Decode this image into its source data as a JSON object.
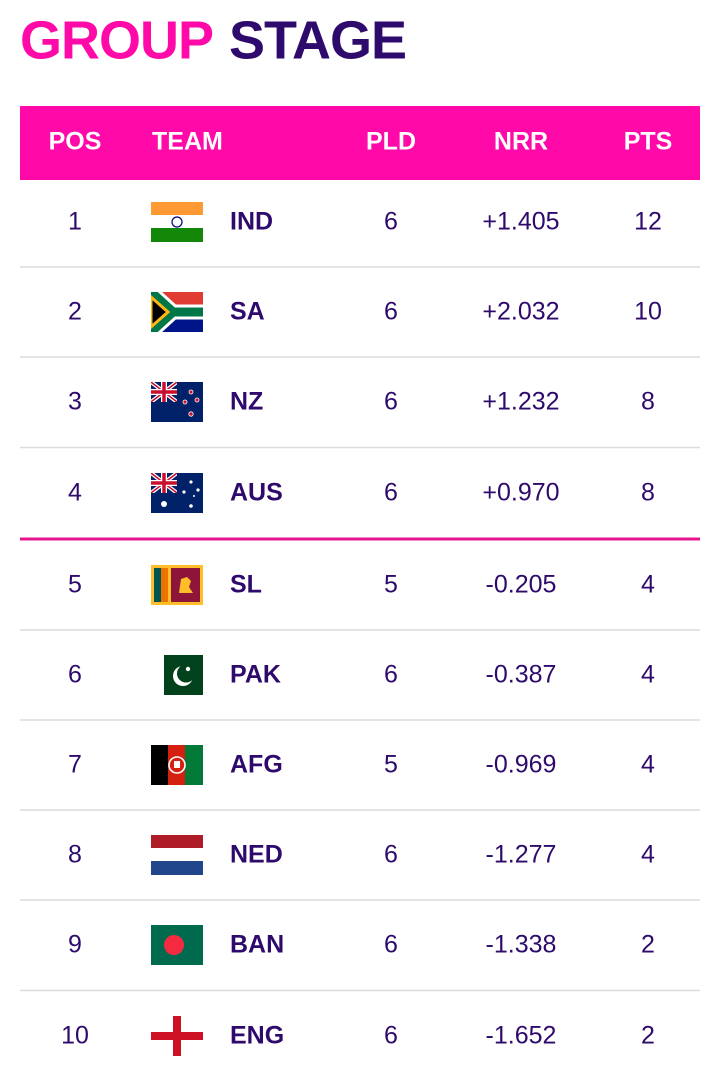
{
  "header": {
    "title_part1": "GROUP",
    "title_part2": "STAGE"
  },
  "table": {
    "columns": [
      "POS",
      "TEAM",
      "PLD",
      "NRR",
      "PTS"
    ],
    "rows": [
      [
        "1",
        "IND",
        "6",
        "+1.405",
        "12"
      ],
      [
        "2",
        "SA",
        "6",
        "+2.032",
        "10"
      ],
      [
        "3",
        "NZ",
        "6",
        "+1.232",
        "8"
      ],
      [
        "4",
        "AUS",
        "6",
        "+0.970",
        "8"
      ],
      [
        "5",
        "SL",
        "5",
        "-0.205",
        "4"
      ],
      [
        "6",
        "PAK",
        "6",
        "-0.387",
        "4"
      ],
      [
        "7",
        "AFG",
        "5",
        "-0.969",
        "4"
      ],
      [
        "8",
        "NED",
        "6",
        "-1.277",
        "4"
      ],
      [
        "9",
        "BAN",
        "6",
        "-1.338",
        "2"
      ],
      [
        "10",
        "ENG",
        "6",
        "-1.652",
        "2"
      ]
    ]
  }
}
